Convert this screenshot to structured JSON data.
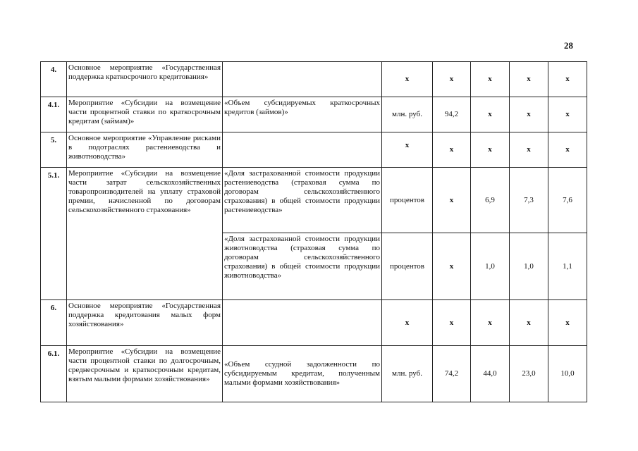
{
  "page_number": "28",
  "rows": [
    {
      "num": "4.",
      "activity": "Основное мероприятие «Государственная поддержка краткосрочного кредитования»",
      "indicator": "",
      "unit": "х",
      "values": [
        "х",
        "х",
        "х",
        "х"
      ]
    },
    {
      "num": "4.1.",
      "activity": "Мероприятие «Субсидии на возмещение части процентной ставки по краткосрочным кредитам (займам)»",
      "indicator": "«Объем субсидируемых краткосрочных кредитов (займов)»",
      "unit": "млн. руб.",
      "values": [
        "94,2",
        "х",
        "х",
        "х"
      ]
    },
    {
      "num": "5.",
      "activity": "Основное мероприятие «Управление рисками в подотраслях растениеводства и животноводства»",
      "indicator": "",
      "unit": "х",
      "values": [
        "х",
        "х",
        "х",
        "х"
      ]
    },
    {
      "num": "5.1.",
      "activity": "Мероприятие «Субсидии на возмещение части затрат сельскохозяйственных товаропроизводителей на уплату страховой премии, начисленной по договорам сельскохозяйственного страхования»",
      "indicator": "«Доля застрахованной стоимости продукции растениеводства (страховая сумма по договорам сельскохозяйственного страхования) в общей стоимости продукции растениеводства»",
      "unit": "процентов",
      "values": [
        "х",
        "6,9",
        "7,3",
        "7,6"
      ]
    },
    {
      "indicator": "«Доля застрахованной стоимости продукции животноводства (страховая сумма по договорам сельскохозяйственного страхования) в общей стоимости продукции животноводства»",
      "unit": "процентов",
      "values": [
        "х",
        "1,0",
        "1,0",
        "1,1"
      ]
    },
    {
      "num": "6.",
      "activity": "Основное мероприятие «Государственная поддержка кредитования малых форм хозяйствования»",
      "indicator": "",
      "unit": "х",
      "values": [
        "х",
        "х",
        "х",
        "х"
      ]
    },
    {
      "num": "6.1.",
      "activity": "Мероприятие «Субсидии на возмещение части процентной ставки по долгосрочным, среднесрочным и краткосрочным кредитам, взятым малыми формами хозяйствования»",
      "indicator": "«Объем ссудной задолженности по субсидируемым кредитам, полученным малыми формами хозяйствования»",
      "unit": "млн. руб.",
      "values": [
        "74,2",
        "44,0",
        "23,0",
        "10,0"
      ]
    }
  ]
}
